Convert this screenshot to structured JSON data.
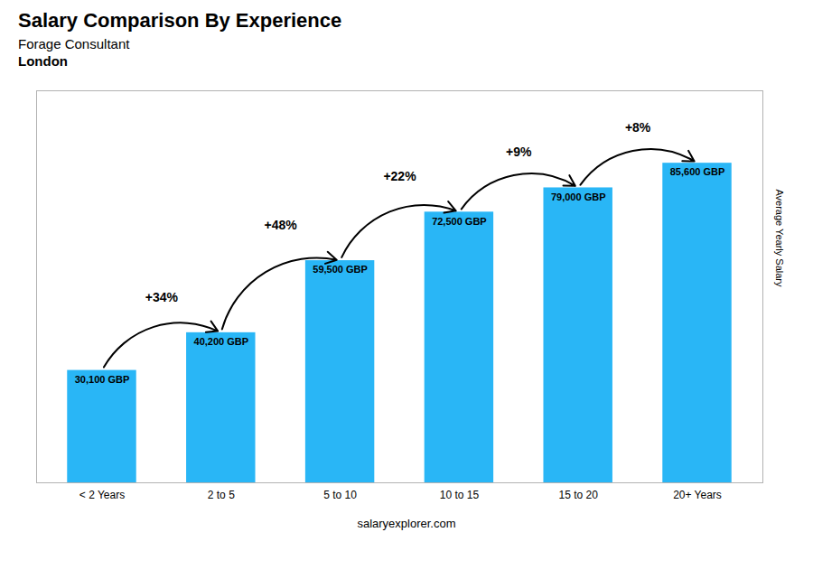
{
  "chart_data": {
    "type": "bar",
    "title": "Salary Comparison By Experience",
    "subtitle": "Forage Consultant",
    "location": "London",
    "categories": [
      "< 2 Years",
      "2 to 5",
      "5 to 10",
      "10 to 15",
      "15 to 20",
      "20+ Years"
    ],
    "values": [
      30100,
      40200,
      59500,
      72500,
      79000,
      85600
    ],
    "value_labels": [
      "30,100 GBP",
      "40,200 GBP",
      "59,500 GBP",
      "72,500 GBP",
      "79,000 GBP",
      "85,600 GBP"
    ],
    "data_labels": true,
    "annotations": [
      "+34%",
      "+48%",
      "+22%",
      "+9%",
      "+8%"
    ],
    "ylabel": "Average Yearly Salary",
    "caption": "salaryexplorer.com",
    "color": "#29b6f6",
    "ylim": [
      0,
      105000
    ],
    "tick_labels": "x",
    "grid": false
  }
}
